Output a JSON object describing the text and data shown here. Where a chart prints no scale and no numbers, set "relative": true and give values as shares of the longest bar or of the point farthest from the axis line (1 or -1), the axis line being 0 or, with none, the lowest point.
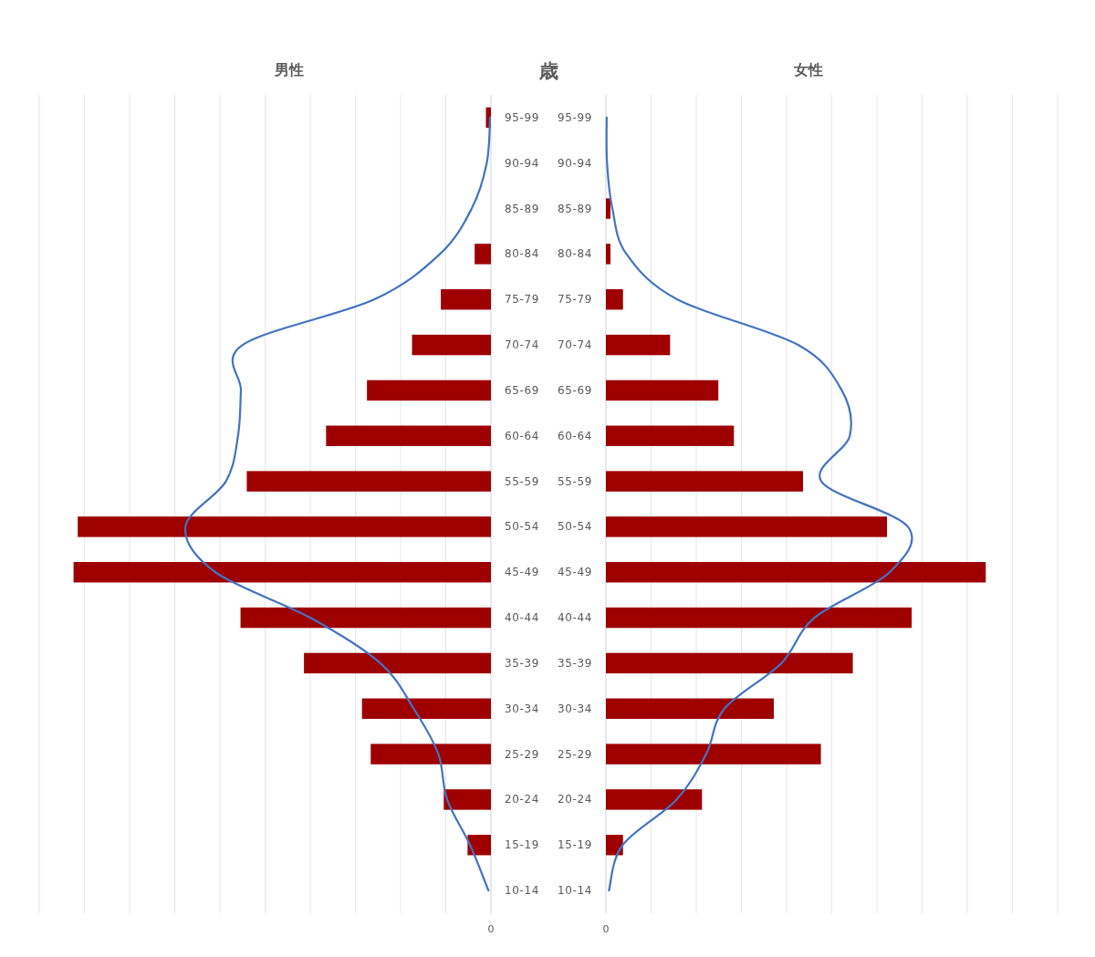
{
  "chart_data": [
    {
      "type": "bar",
      "orientation": "horizontal",
      "relative": true,
      "title": "男性",
      "ylabel": "歳",
      "categories": [
        "95-99",
        "90-94",
        "85-89",
        "80-84",
        "75-79",
        "70-74",
        "65-69",
        "60-64",
        "55-59",
        "50-54",
        "45-49",
        "40-44",
        "35-39",
        "30-34",
        "25-29",
        "20-24",
        "15-19",
        "10-14"
      ],
      "series": [
        {
          "color": "#9e0000",
          "values": [
            -0.012,
            0,
            0,
            -0.039,
            -0.12,
            -0.189,
            -0.297,
            -0.395,
            -0.585,
            -0.99,
            -1,
            -0.6,
            -0.448,
            -0.309,
            -0.288,
            -0.113,
            -0.056,
            0
          ]
        },
        {
          "type": "line",
          "color": "#4472c4",
          "values": [
            -0.002,
            -0.01,
            -0.046,
            -0.122,
            -0.28,
            -0.595,
            -0.599,
            -0.606,
            -0.635,
            -0.732,
            -0.66,
            -0.433,
            -0.265,
            -0.185,
            -0.126,
            -0.105,
            -0.05,
            -0.006
          ]
        }
      ],
      "annotations": [
        "0"
      ],
      "grid": "x"
    },
    {
      "type": "bar",
      "orientation": "horizontal",
      "relative": true,
      "title": "女性",
      "categories": [
        "95-99",
        "90-94",
        "85-89",
        "80-84",
        "75-79",
        "70-74",
        "65-69",
        "60-64",
        "55-59",
        "50-54",
        "45-49",
        "40-44",
        "35-39",
        "30-34",
        "25-29",
        "20-24",
        "15-19",
        "10-14"
      ],
      "series": [
        {
          "color": "#9e0000",
          "values": [
            0,
            0,
            0.012,
            0.012,
            0.045,
            0.169,
            0.296,
            0.337,
            0.519,
            0.74,
            1,
            0.805,
            0.65,
            0.442,
            0.566,
            0.253,
            0.045,
            0
          ]
        },
        {
          "type": "line",
          "color": "#4472c4",
          "values": [
            0.002,
            0.003,
            0.017,
            0.054,
            0.188,
            0.506,
            0.621,
            0.642,
            0.567,
            0.795,
            0.747,
            0.549,
            0.462,
            0.312,
            0.264,
            0.186,
            0.044,
            0.008
          ]
        }
      ],
      "annotations": [
        "0"
      ],
      "grid": "x"
    }
  ]
}
